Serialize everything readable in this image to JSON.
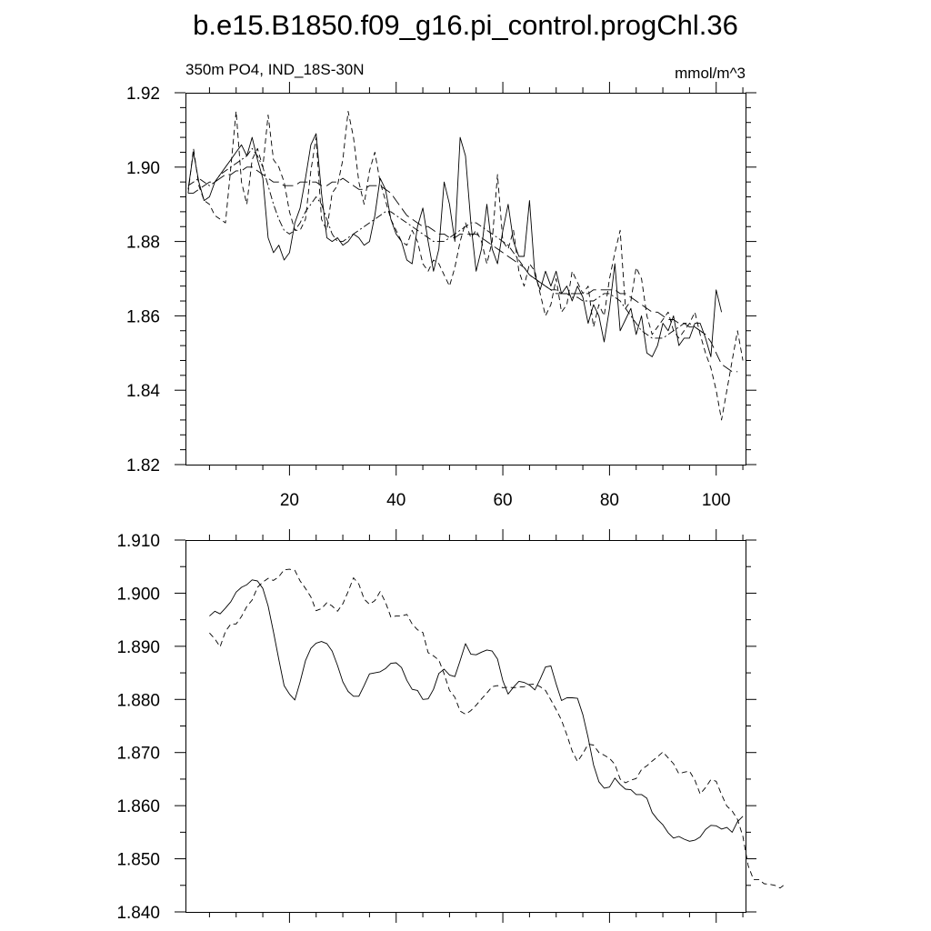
{
  "title": "b.e15.B1850.f09_g16.pi_control.progChl.36",
  "chart_data": [
    {
      "type": "line",
      "left_label": "350m PO4, IND_18S-30N",
      "right_label": "mmol/m^3",
      "xlim": [
        0.5,
        105.5
      ],
      "ylim": [
        1.82,
        1.92
      ],
      "x_ticks": [
        20,
        40,
        60,
        80,
        100
      ],
      "x_tick_labels": [
        "20",
        "40",
        "60",
        "80",
        "100"
      ],
      "y_ticks": [
        1.82,
        1.84,
        1.86,
        1.88,
        1.9,
        1.92
      ],
      "y_tick_labels": [
        "1.82",
        "1.84",
        "1.86",
        "1.88",
        "1.90",
        "1.92"
      ],
      "series": [
        {
          "name": "solid",
          "style": "solid",
          "x_start": 1,
          "values": [
            1.894,
            1.904,
            1.896,
            1.891,
            1.892,
            1.896,
            1.898,
            1.9,
            1.902,
            1.904,
            1.906,
            1.903,
            1.908,
            1.902,
            1.897,
            1.881,
            1.877,
            1.879,
            1.875,
            1.877,
            1.885,
            1.889,
            1.897,
            1.906,
            1.909,
            1.893,
            1.881,
            1.88,
            1.881,
            1.879,
            1.88,
            1.882,
            1.881,
            1.879,
            1.88,
            1.887,
            1.897,
            1.894,
            1.886,
            1.882,
            1.88,
            1.875,
            1.874,
            1.884,
            1.889,
            1.88,
            1.872,
            1.878,
            1.896,
            1.89,
            1.88,
            1.908,
            1.903,
            1.885,
            1.872,
            1.878,
            1.89,
            1.878,
            1.874,
            1.883,
            1.89,
            1.88,
            1.876,
            1.876,
            1.891,
            1.871,
            1.867,
            1.872,
            1.868,
            1.872,
            1.866,
            1.868,
            1.864,
            1.868,
            1.865,
            1.858,
            1.863,
            1.86,
            1.853,
            1.862,
            1.874,
            1.856,
            1.859,
            1.862,
            1.855,
            1.86,
            1.85,
            1.849,
            1.852,
            1.858,
            1.856,
            1.86,
            1.852,
            1.854,
            1.854,
            1.858,
            1.858,
            1.854,
            1.849,
            1.867,
            1.861
          ]
        },
        {
          "name": "dashed",
          "style": "dashed",
          "x_start": 1,
          "values": [
            1.893,
            1.905,
            1.895,
            1.891,
            1.89,
            1.887,
            1.886,
            1.885,
            1.9,
            1.915,
            1.896,
            1.89,
            1.902,
            1.905,
            1.9,
            1.914,
            1.902,
            1.9,
            1.896,
            1.888,
            1.883,
            1.883,
            1.886,
            1.899,
            1.908,
            1.886,
            1.883,
            1.893,
            1.895,
            1.902,
            1.915,
            1.908,
            1.896,
            1.89,
            1.899,
            1.904,
            1.896,
            1.891,
            1.886,
            1.883,
            1.88,
            1.879,
            1.883,
            1.88,
            1.874,
            1.872,
            1.875,
            1.874,
            1.871,
            1.868,
            1.873,
            1.88,
            1.885,
            1.881,
            1.883,
            1.88,
            1.874,
            1.88,
            1.898,
            1.88,
            1.878,
            1.883,
            1.872,
            1.868,
            1.874,
            1.872,
            1.866,
            1.86,
            1.863,
            1.87,
            1.861,
            1.863,
            1.872,
            1.869,
            1.866,
            1.868,
            1.857,
            1.863,
            1.86,
            1.87,
            1.877,
            1.883,
            1.862,
            1.864,
            1.873,
            1.87,
            1.86,
            1.855,
            1.857,
            1.859,
            1.861,
            1.856,
            1.854,
            1.856,
            1.858,
            1.861,
            1.855,
            1.85,
            1.846,
            1.84,
            1.832,
            1.84,
            1.848,
            1.856,
            1.848
          ]
        },
        {
          "name": "dotdash",
          "style": "dotdash",
          "x_start": 1,
          "values": [
            1.895,
            1.896,
            1.897,
            1.896,
            1.895,
            1.896,
            1.898,
            1.899,
            1.9,
            1.901,
            1.902,
            1.903,
            1.905,
            1.903,
            1.9,
            1.895,
            1.89,
            1.886,
            1.883,
            1.882,
            1.883,
            1.885,
            1.888,
            1.89,
            1.892,
            1.89,
            1.886,
            1.882,
            1.88,
            1.88,
            1.881,
            1.882,
            1.883,
            1.884,
            1.885,
            1.886,
            1.887,
            1.888,
            1.888,
            1.887,
            1.886,
            1.885,
            1.884,
            1.883,
            1.882,
            1.881,
            1.88,
            1.88,
            1.88,
            1.881,
            1.882,
            1.883,
            1.884,
            1.885,
            1.885,
            1.884,
            1.883,
            1.882,
            1.881,
            1.88,
            1.879,
            1.877,
            1.875,
            1.873,
            1.871,
            1.87,
            1.869,
            1.868,
            1.867,
            1.867,
            1.866,
            1.866,
            1.865,
            1.865,
            1.864,
            1.864,
            1.864,
            1.865,
            1.866,
            1.866,
            1.865,
            1.864,
            1.862,
            1.86,
            1.858,
            1.856,
            1.855,
            1.854,
            1.854,
            1.854,
            1.855,
            1.856,
            1.857,
            1.858,
            1.858,
            1.857,
            1.856,
            1.855
          ]
        },
        {
          "name": "longdash",
          "style": "longdash",
          "x_start": 1,
          "values": [
            1.893,
            1.893,
            1.894,
            1.895,
            1.896,
            1.896,
            1.897,
            1.898,
            1.898,
            1.899,
            1.899,
            1.9,
            1.9,
            1.899,
            1.898,
            1.897,
            1.896,
            1.896,
            1.895,
            1.895,
            1.895,
            1.896,
            1.896,
            1.896,
            1.896,
            1.895,
            1.895,
            1.896,
            1.896,
            1.897,
            1.896,
            1.895,
            1.894,
            1.894,
            1.895,
            1.895,
            1.895,
            1.894,
            1.893,
            1.891,
            1.889,
            1.887,
            1.886,
            1.885,
            1.884,
            1.884,
            1.883,
            1.882,
            1.882,
            1.881,
            1.881,
            1.882,
            1.882,
            1.882,
            1.882,
            1.881,
            1.88,
            1.879,
            1.878,
            1.877,
            1.876,
            1.875,
            1.874,
            1.873,
            1.871,
            1.87,
            1.869,
            1.868,
            1.867,
            1.866,
            1.866,
            1.866,
            1.866,
            1.866,
            1.866,
            1.866,
            1.867,
            1.867,
            1.867,
            1.867,
            1.867,
            1.866,
            1.866,
            1.865,
            1.864,
            1.863,
            1.862,
            1.861,
            1.861,
            1.86,
            1.859,
            1.859,
            1.858,
            1.858,
            1.857,
            1.857,
            1.856,
            1.855,
            1.853,
            1.85,
            1.847,
            1.846,
            1.845,
            1.845
          ]
        }
      ]
    },
    {
      "type": "line",
      "xlim": [
        0.5,
        105.5
      ],
      "ylim": [
        1.84,
        1.91
      ],
      "x_ticks": [
        20,
        40,
        60,
        80,
        100
      ],
      "y_ticks": [
        1.84,
        1.85,
        1.86,
        1.87,
        1.88,
        1.89,
        1.9,
        1.91
      ],
      "y_tick_labels": [
        "1.840",
        "1.850",
        "1.860",
        "1.870",
        "1.880",
        "1.890",
        "1.900",
        "1.910"
      ],
      "series": [
        {
          "name": "solid",
          "style": "solid",
          "x_start": 5,
          "values": [
            1.8957,
            1.8966,
            1.8961,
            1.8972,
            1.8984,
            1.9002,
            1.9011,
            1.9016,
            1.9025,
            1.9023,
            1.9009,
            1.8976,
            1.8927,
            1.8875,
            1.8826,
            1.881,
            1.8799,
            1.8833,
            1.8873,
            1.8896,
            1.8906,
            1.8909,
            1.8905,
            1.8891,
            1.8864,
            1.8833,
            1.8815,
            1.8806,
            1.8806,
            1.8826,
            1.8848,
            1.885,
            1.8852,
            1.8858,
            1.8868,
            1.8869,
            1.886,
            1.8836,
            1.8819,
            1.8817,
            1.88,
            1.8801,
            1.8819,
            1.8849,
            1.8857,
            1.8846,
            1.8843,
            1.8873,
            1.8905,
            1.8885,
            1.8884,
            1.8889,
            1.8893,
            1.8891,
            1.8876,
            1.8835,
            1.881,
            1.8823,
            1.8834,
            1.8832,
            1.8827,
            1.8818,
            1.8838,
            1.8861,
            1.8863,
            1.8829,
            1.8798,
            1.8803,
            1.8803,
            1.8802,
            1.8771,
            1.8728,
            1.8677,
            1.8645,
            1.8633,
            1.8635,
            1.8652,
            1.864,
            1.8631,
            1.863,
            1.8621,
            1.8621,
            1.8614,
            1.8587,
            1.8574,
            1.8564,
            1.8549,
            1.8539,
            1.8542,
            1.8537,
            1.8533,
            1.8535,
            1.8541,
            1.8555,
            1.8563,
            1.8562,
            1.8556,
            1.8559,
            1.855,
            1.857,
            1.858
          ]
        },
        {
          "name": "dashed",
          "style": "dashed",
          "x_start": 5,
          "values": [
            1.8925,
            1.8914,
            1.8899,
            1.8928,
            1.8942,
            1.8942,
            1.8956,
            1.8975,
            1.8987,
            1.9011,
            1.9021,
            1.9028,
            1.9024,
            1.9031,
            1.9044,
            1.9045,
            1.9043,
            1.9023,
            1.9009,
            1.8993,
            1.8967,
            1.8971,
            1.8982,
            1.8976,
            1.8966,
            1.898,
            1.9003,
            1.9029,
            1.9017,
            1.8989,
            1.8979,
            1.8986,
            1.9003,
            1.8983,
            1.8955,
            1.8957,
            1.8957,
            1.896,
            1.8942,
            1.8931,
            1.8926,
            1.8888,
            1.8882,
            1.8874,
            1.8848,
            1.8817,
            1.8804,
            1.8778,
            1.8772,
            1.8779,
            1.8789,
            1.8801,
            1.8812,
            1.8824,
            1.8826,
            1.8822,
            1.8823,
            1.8822,
            1.8823,
            1.8824,
            1.8828,
            1.8829,
            1.8824,
            1.8817,
            1.8799,
            1.8781,
            1.8761,
            1.8733,
            1.8703,
            1.8683,
            1.8698,
            1.8716,
            1.8714,
            1.87,
            1.8695,
            1.8689,
            1.8678,
            1.865,
            1.8643,
            1.8648,
            1.8651,
            1.8668,
            1.8675,
            1.8684,
            1.8692,
            1.8701,
            1.869,
            1.8679,
            1.866,
            1.8663,
            1.8665,
            1.8648,
            1.8622,
            1.8634,
            1.8649,
            1.8646,
            1.8621,
            1.8599,
            1.859,
            1.8574,
            1.8542,
            1.8487,
            1.8461,
            1.8461,
            1.8453,
            1.8452,
            1.845,
            1.8445,
            1.8453
          ]
        }
      ]
    }
  ]
}
